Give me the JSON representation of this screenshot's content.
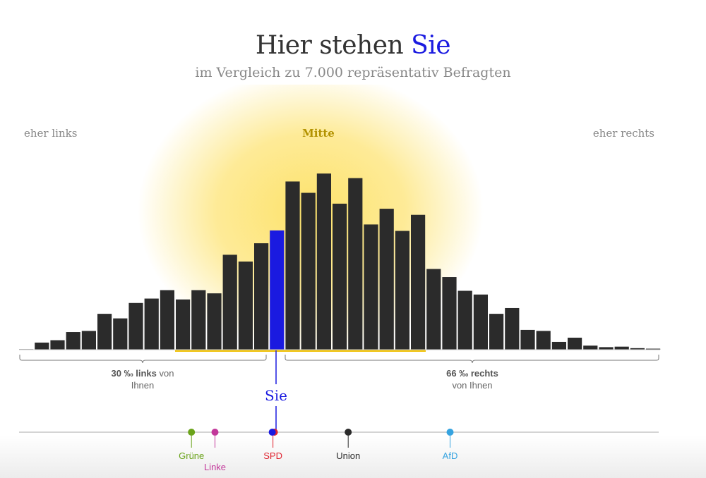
{
  "header": {
    "title_part1": "Hier stehen ",
    "title_highlight": "Sie",
    "subtitle": "im Vergleich zu 7.000 repräsentativ Befragten"
  },
  "scale": {
    "left_label": "eher links",
    "center_label": "Mitte",
    "right_label": "eher rechts"
  },
  "annotations": {
    "left_pct": "30 ‰",
    "left_word": "links",
    "left_rest1": " von",
    "left_rest2": "Ihnen",
    "right_pct": "66 ‰",
    "right_word": "rechts",
    "right_rest2": "von Ihnen",
    "you_label": "Sie"
  },
  "colors": {
    "bar": "#2b2b2b",
    "you_bar": "#1a1ae0",
    "center_glow": "#fde26b",
    "center_label": "#b39200",
    "side_labels": "#888888"
  },
  "parties": [
    {
      "name": "Grüne",
      "color": "#6aa31a",
      "position": 11
    },
    {
      "name": "Linke",
      "color": "#c2379a",
      "position": 12.5
    },
    {
      "name": "SPD",
      "color": "#e0232f",
      "position": 16.2
    },
    {
      "name": "Union",
      "color": "#2b2b2b",
      "position": 21
    },
    {
      "name": "AfD",
      "color": "#35a3e0",
      "position": 27.5
    }
  ],
  "chart_data": {
    "type": "bar",
    "title": "Hier stehen Sie",
    "subtitle": "im Vergleich zu 7.000 repräsentativ Befragten",
    "x": [
      0,
      1,
      2,
      3,
      4,
      5,
      6,
      7,
      8,
      9,
      10,
      11,
      12,
      13,
      14,
      15,
      16,
      17,
      18,
      19,
      20,
      21,
      22,
      23,
      24,
      25,
      26,
      27,
      28,
      29,
      30,
      31,
      32,
      33,
      34,
      35,
      36,
      37,
      38,
      39,
      40
    ],
    "values": [
      0.3,
      4.2,
      5.6,
      10.4,
      11.1,
      21.2,
      18.5,
      27.6,
      30.2,
      35.2,
      29.7,
      35.2,
      33.3,
      56.1,
      52.1,
      62.9,
      70.5,
      99.4,
      92.7,
      104.1,
      86.3,
      101.4,
      74.0,
      83.3,
      70.2,
      79.7,
      47.7,
      42.9,
      34.8,
      32.6,
      21.2,
      24.6,
      11.7,
      11.1,
      4.6,
      7.1,
      2.4,
      1.5,
      1.8,
      0.9,
      0.6
    ],
    "highlight_index": 16,
    "highlight_label": "Sie",
    "center_range": [
      10,
      26
    ],
    "grid": false,
    "legend": "none"
  }
}
